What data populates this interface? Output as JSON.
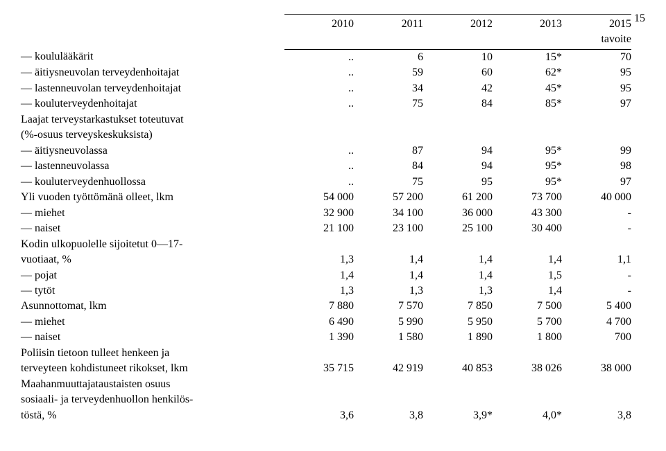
{
  "page_number": "15",
  "columns": [
    "2010",
    "2011",
    "2012",
    "2013",
    "2015"
  ],
  "header2": [
    "",
    "",
    "",
    "",
    "tavoite"
  ],
  "style": {
    "font_family": "Times New Roman",
    "font_size_pt": 12,
    "text_color": "#000000",
    "background_color": "#ffffff",
    "border_color": "#000000",
    "col_width_label": 380,
    "col_width_num": 100
  },
  "rows": [
    {
      "label": "— koululääkärit",
      "v": [
        "..",
        "6",
        "10",
        "15*",
        "70"
      ]
    },
    {
      "label": "— äitiysneuvolan terveydenhoitajat",
      "v": [
        "..",
        "59",
        "60",
        "62*",
        "95"
      ]
    },
    {
      "label": "— lastenneuvolan terveydenhoitajat",
      "v": [
        "..",
        "34",
        "42",
        "45*",
        "95"
      ]
    },
    {
      "label": "— kouluterveydenhoitajat",
      "v": [
        "..",
        "75",
        "84",
        "85*",
        "97"
      ]
    },
    {
      "label": "Laajat terveystarkastukset toteutuvat",
      "v": [
        "",
        "",
        "",
        "",
        ""
      ]
    },
    {
      "label": "(%-osuus terveyskeskuksista)",
      "v": [
        "",
        "",
        "",
        "",
        ""
      ]
    },
    {
      "label": "— äitiysneuvolassa",
      "v": [
        "..",
        "87",
        "94",
        "95*",
        "99"
      ]
    },
    {
      "label": "— lastenneuvolassa",
      "v": [
        "..",
        "84",
        "94",
        "95*",
        "98"
      ]
    },
    {
      "label": "— kouluterveydenhuollossa",
      "v": [
        "..",
        "75",
        "95",
        "95*",
        "97"
      ]
    },
    {
      "label": "Yli vuoden työttömänä olleet, lkm",
      "v": [
        "54 000",
        "57 200",
        "61 200",
        "73 700",
        "40 000"
      ]
    },
    {
      "label": "— miehet",
      "v": [
        "32 900",
        "34 100",
        "36 000",
        "43 300",
        "-"
      ]
    },
    {
      "label": "— naiset",
      "v": [
        "21 100",
        "23 100",
        "25 100",
        "30 400",
        "-"
      ]
    },
    {
      "label": "Kodin ulkopuolelle sijoitetut 0—17-",
      "v": [
        "",
        "",
        "",
        "",
        ""
      ]
    },
    {
      "label": "vuotiaat, %",
      "v": [
        "1,3",
        "1,4",
        "1,4",
        "1,4",
        "1,1"
      ]
    },
    {
      "label": "— pojat",
      "v": [
        "1,4",
        "1,4",
        "1,4",
        "1,5",
        "-"
      ]
    },
    {
      "label": "— tytöt",
      "v": [
        "1,3",
        "1,3",
        "1,3",
        "1,4",
        "-"
      ]
    },
    {
      "label": "Asunnottomat, lkm",
      "v": [
        "7 880",
        "7 570",
        "7 850",
        "7 500",
        "5 400"
      ]
    },
    {
      "label": "— miehet",
      "v": [
        "6 490",
        "5 990",
        "5 950",
        "5 700",
        "4 700"
      ]
    },
    {
      "label": "— naiset",
      "v": [
        "1 390",
        "1 580",
        "1 890",
        "1 800",
        "700"
      ]
    },
    {
      "label": "Poliisin tietoon tulleet henkeen ja",
      "v": [
        "",
        "",
        "",
        "",
        ""
      ]
    },
    {
      "label": "terveyteen kohdistuneet rikokset, lkm",
      "v": [
        "35 715",
        "42 919",
        "40 853",
        "38 026",
        "38 000"
      ]
    },
    {
      "label": "Maahanmuuttajataustaisten osuus",
      "v": [
        "",
        "",
        "",
        "",
        ""
      ]
    },
    {
      "label": "sosiaali- ja terveydenhuollon henkilös-",
      "v": [
        "",
        "",
        "",
        "",
        ""
      ]
    },
    {
      "label": "töstä, %",
      "v": [
        "3,6",
        "3,8",
        "3,9*",
        "4,0*",
        "3,8"
      ]
    }
  ]
}
